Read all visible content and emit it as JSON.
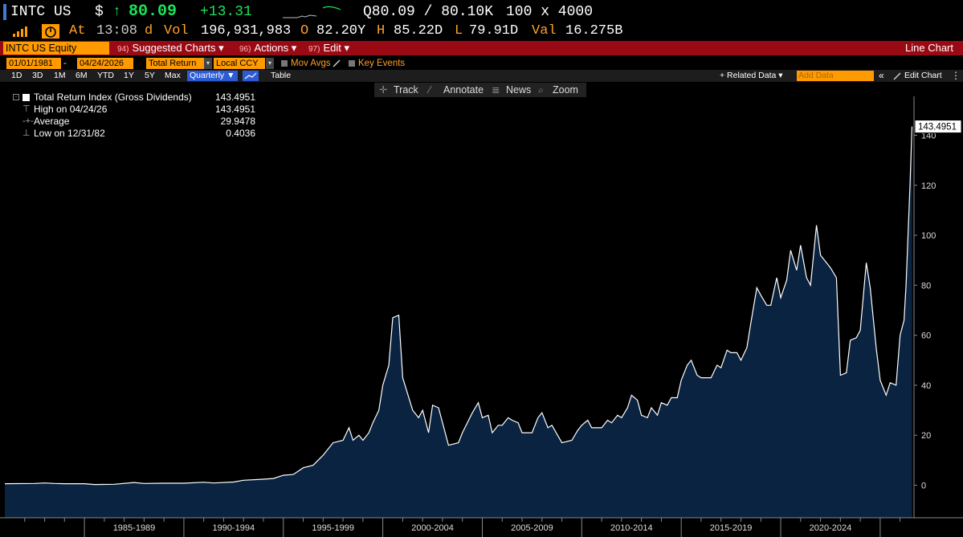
{
  "quote": {
    "ticker": "INTC US",
    "currency_symbol": "$",
    "up_arrow": "↑",
    "last_price": "80.09",
    "change": "+13.31",
    "bid_ask": "Q80.09 / 80.10K",
    "size": "100 x 4000",
    "at_label": "At",
    "time": "13:08",
    "time_suffix": "d",
    "vol_label": "Vol",
    "volume": "196,931,983",
    "open_label": "O",
    "open": "82.20Y",
    "high_label": "H",
    "high": "85.22D",
    "low_label": "L",
    "low": "79.91D",
    "val_label": "Val",
    "value": "16.275B"
  },
  "command_bar": {
    "security": "INTC US Equity",
    "menus": [
      {
        "num": "94)",
        "label": "Suggested Charts",
        "arrow": "▾"
      },
      {
        "num": "96)",
        "label": "Actions",
        "arrow": "▾"
      },
      {
        "num": "97)",
        "label": "Edit",
        "arrow": "▾"
      }
    ],
    "title": "Line Chart"
  },
  "params": {
    "start_date": "01/01/1981",
    "dash": "-",
    "end_date": "04/24/2026",
    "field": "Total Return",
    "currency": "Local CCY",
    "mov_avgs": "Mov Avgs",
    "key_events": "Key Events",
    "dd_arrow": "▾"
  },
  "range": {
    "buttons": [
      "1D",
      "3D",
      "1M",
      "6M",
      "YTD",
      "1Y",
      "5Y",
      "Max"
    ],
    "periodicity": "Quarterly ▼",
    "table": "Table",
    "related_data": "+ Related Data ▾",
    "add_data_placeholder": "Add Data",
    "collapse": "«",
    "edit_chart": "Edit Chart",
    "more": "⋮"
  },
  "tools": {
    "track": "Track",
    "annotate": "Annotate",
    "news": "News",
    "zoom": "Zoom"
  },
  "legend": {
    "series_name": "Total Return Index (Gross Dividends)",
    "series_value": "143.4951",
    "high_label": "High on 04/24/26",
    "high_value": "143.4951",
    "avg_label": "Average",
    "avg_value": "29.9478",
    "low_label": "Low on 12/31/82",
    "low_value": "0.4036"
  },
  "colors": {
    "background": "#000000",
    "area_fill": "#0a2340",
    "line": "#ffffff",
    "accent": "#ff9a00",
    "command_bar": "#9a0a14",
    "up": "#19e35a"
  },
  "chart_data": {
    "type": "area",
    "series_name": "Total Return Index (Gross Dividends)",
    "last_value_label": "143.4951",
    "x_tick_labels": [
      "1985-1989",
      "1990-1994",
      "1995-1999",
      "2000-2004",
      "2005-2009",
      "2010-2014",
      "2015-2019",
      "2020-2024"
    ],
    "y_ticks": [
      0,
      20,
      40,
      60,
      80,
      100,
      120,
      140
    ],
    "ylim": [
      -13,
      153
    ],
    "xlim": [
      1981.0,
      2026.7
    ],
    "y_axis_side": "right",
    "grid": false,
    "points": [
      [
        1981.0,
        0.6
      ],
      [
        1982.5,
        0.7
      ],
      [
        1983.0,
        0.9
      ],
      [
        1983.5,
        0.7
      ],
      [
        1984.0,
        0.6
      ],
      [
        1985.0,
        0.6
      ],
      [
        1985.5,
        0.3
      ],
      [
        1986.5,
        0.4
      ],
      [
        1987.5,
        1.1
      ],
      [
        1988.0,
        0.7
      ],
      [
        1989.0,
        0.8
      ],
      [
        1990.0,
        0.8
      ],
      [
        1991.0,
        1.2
      ],
      [
        1991.5,
        0.9
      ],
      [
        1992.5,
        1.3
      ],
      [
        1993.0,
        2.0
      ],
      [
        1994.0,
        2.4
      ],
      [
        1994.5,
        2.7
      ],
      [
        1995.0,
        4.0
      ],
      [
        1995.5,
        4.3
      ],
      [
        1996.0,
        7.0
      ],
      [
        1996.5,
        8.0
      ],
      [
        1997.0,
        12.0
      ],
      [
        1997.5,
        17.0
      ],
      [
        1998.0,
        18.0
      ],
      [
        1998.3,
        23.0
      ],
      [
        1998.5,
        18.0
      ],
      [
        1998.8,
        20.0
      ],
      [
        1999.0,
        18.0
      ],
      [
        1999.3,
        21.0
      ],
      [
        1999.5,
        25.0
      ],
      [
        1999.8,
        30.0
      ],
      [
        2000.0,
        40.0
      ],
      [
        2000.3,
        48.0
      ],
      [
        2000.5,
        67.0
      ],
      [
        2000.8,
        68.0
      ],
      [
        2001.0,
        43.0
      ],
      [
        2001.5,
        30.0
      ],
      [
        2001.8,
        27.0
      ],
      [
        2002.0,
        30.0
      ],
      [
        2002.3,
        21.0
      ],
      [
        2002.5,
        32.0
      ],
      [
        2002.8,
        31.0
      ],
      [
        2003.3,
        16.0
      ],
      [
        2003.8,
        17.0
      ],
      [
        2004.0,
        21.0
      ],
      [
        2004.5,
        29.0
      ],
      [
        2004.8,
        33.0
      ],
      [
        2005.0,
        27.0
      ],
      [
        2005.3,
        28.0
      ],
      [
        2005.5,
        21.0
      ],
      [
        2005.8,
        24.0
      ],
      [
        2006.0,
        24.0
      ],
      [
        2006.3,
        27.0
      ],
      [
        2006.5,
        26.0
      ],
      [
        2006.8,
        25.0
      ],
      [
        2007.0,
        21.0
      ],
      [
        2007.5,
        21.0
      ],
      [
        2007.8,
        27.0
      ],
      [
        2008.0,
        29.0
      ],
      [
        2008.3,
        23.0
      ],
      [
        2008.5,
        24.0
      ],
      [
        2009.0,
        17.0
      ],
      [
        2009.5,
        18.0
      ],
      [
        2009.8,
        22.0
      ],
      [
        2010.0,
        24.0
      ],
      [
        2010.3,
        26.0
      ],
      [
        2010.5,
        23.0
      ],
      [
        2011.0,
        23.0
      ],
      [
        2011.3,
        26.0
      ],
      [
        2011.5,
        25.0
      ],
      [
        2011.8,
        28.0
      ],
      [
        2012.0,
        27.0
      ],
      [
        2012.3,
        31.0
      ],
      [
        2012.5,
        36.0
      ],
      [
        2012.8,
        34.0
      ],
      [
        2013.0,
        28.0
      ],
      [
        2013.3,
        27.0
      ],
      [
        2013.5,
        31.0
      ],
      [
        2013.8,
        28.0
      ],
      [
        2014.0,
        33.0
      ],
      [
        2014.3,
        32.0
      ],
      [
        2014.5,
        35.0
      ],
      [
        2014.8,
        35.0
      ],
      [
        2015.0,
        42.0
      ],
      [
        2015.3,
        48.0
      ],
      [
        2015.5,
        50.0
      ],
      [
        2015.8,
        44.0
      ],
      [
        2016.0,
        43.0
      ],
      [
        2016.5,
        43.0
      ],
      [
        2016.8,
        48.0
      ],
      [
        2017.0,
        47.0
      ],
      [
        2017.3,
        54.0
      ],
      [
        2017.5,
        53.0
      ],
      [
        2017.8,
        53.0
      ],
      [
        2018.0,
        50.0
      ],
      [
        2018.3,
        55.0
      ],
      [
        2018.5,
        65.0
      ],
      [
        2018.8,
        79.0
      ],
      [
        2019.0,
        76.0
      ],
      [
        2019.3,
        72.0
      ],
      [
        2019.5,
        72.0
      ],
      [
        2019.8,
        83.0
      ],
      [
        2020.0,
        75.0
      ],
      [
        2020.3,
        82.0
      ],
      [
        2020.5,
        94.0
      ],
      [
        2020.8,
        86.0
      ],
      [
        2021.0,
        96.0
      ],
      [
        2021.3,
        83.0
      ],
      [
        2021.5,
        80.0
      ],
      [
        2021.8,
        104.0
      ],
      [
        2022.0,
        92.0
      ],
      [
        2022.3,
        89.0
      ],
      [
        2022.5,
        87.0
      ],
      [
        2022.8,
        83.0
      ],
      [
        2023.0,
        44.0
      ],
      [
        2023.3,
        45.0
      ],
      [
        2023.5,
        58.0
      ],
      [
        2023.8,
        59.0
      ],
      [
        2024.0,
        62.0
      ],
      [
        2024.3,
        89.0
      ],
      [
        2024.5,
        79.0
      ],
      [
        2024.8,
        55.0
      ],
      [
        2025.0,
        42.0
      ],
      [
        2025.3,
        36.0
      ],
      [
        2025.5,
        41.0
      ],
      [
        2025.8,
        40.0
      ],
      [
        2026.0,
        60.0
      ],
      [
        2026.2,
        66.0
      ],
      [
        2026.3,
        80.0
      ],
      [
        2026.5,
        120.0
      ],
      [
        2026.6,
        143.4951
      ]
    ]
  }
}
